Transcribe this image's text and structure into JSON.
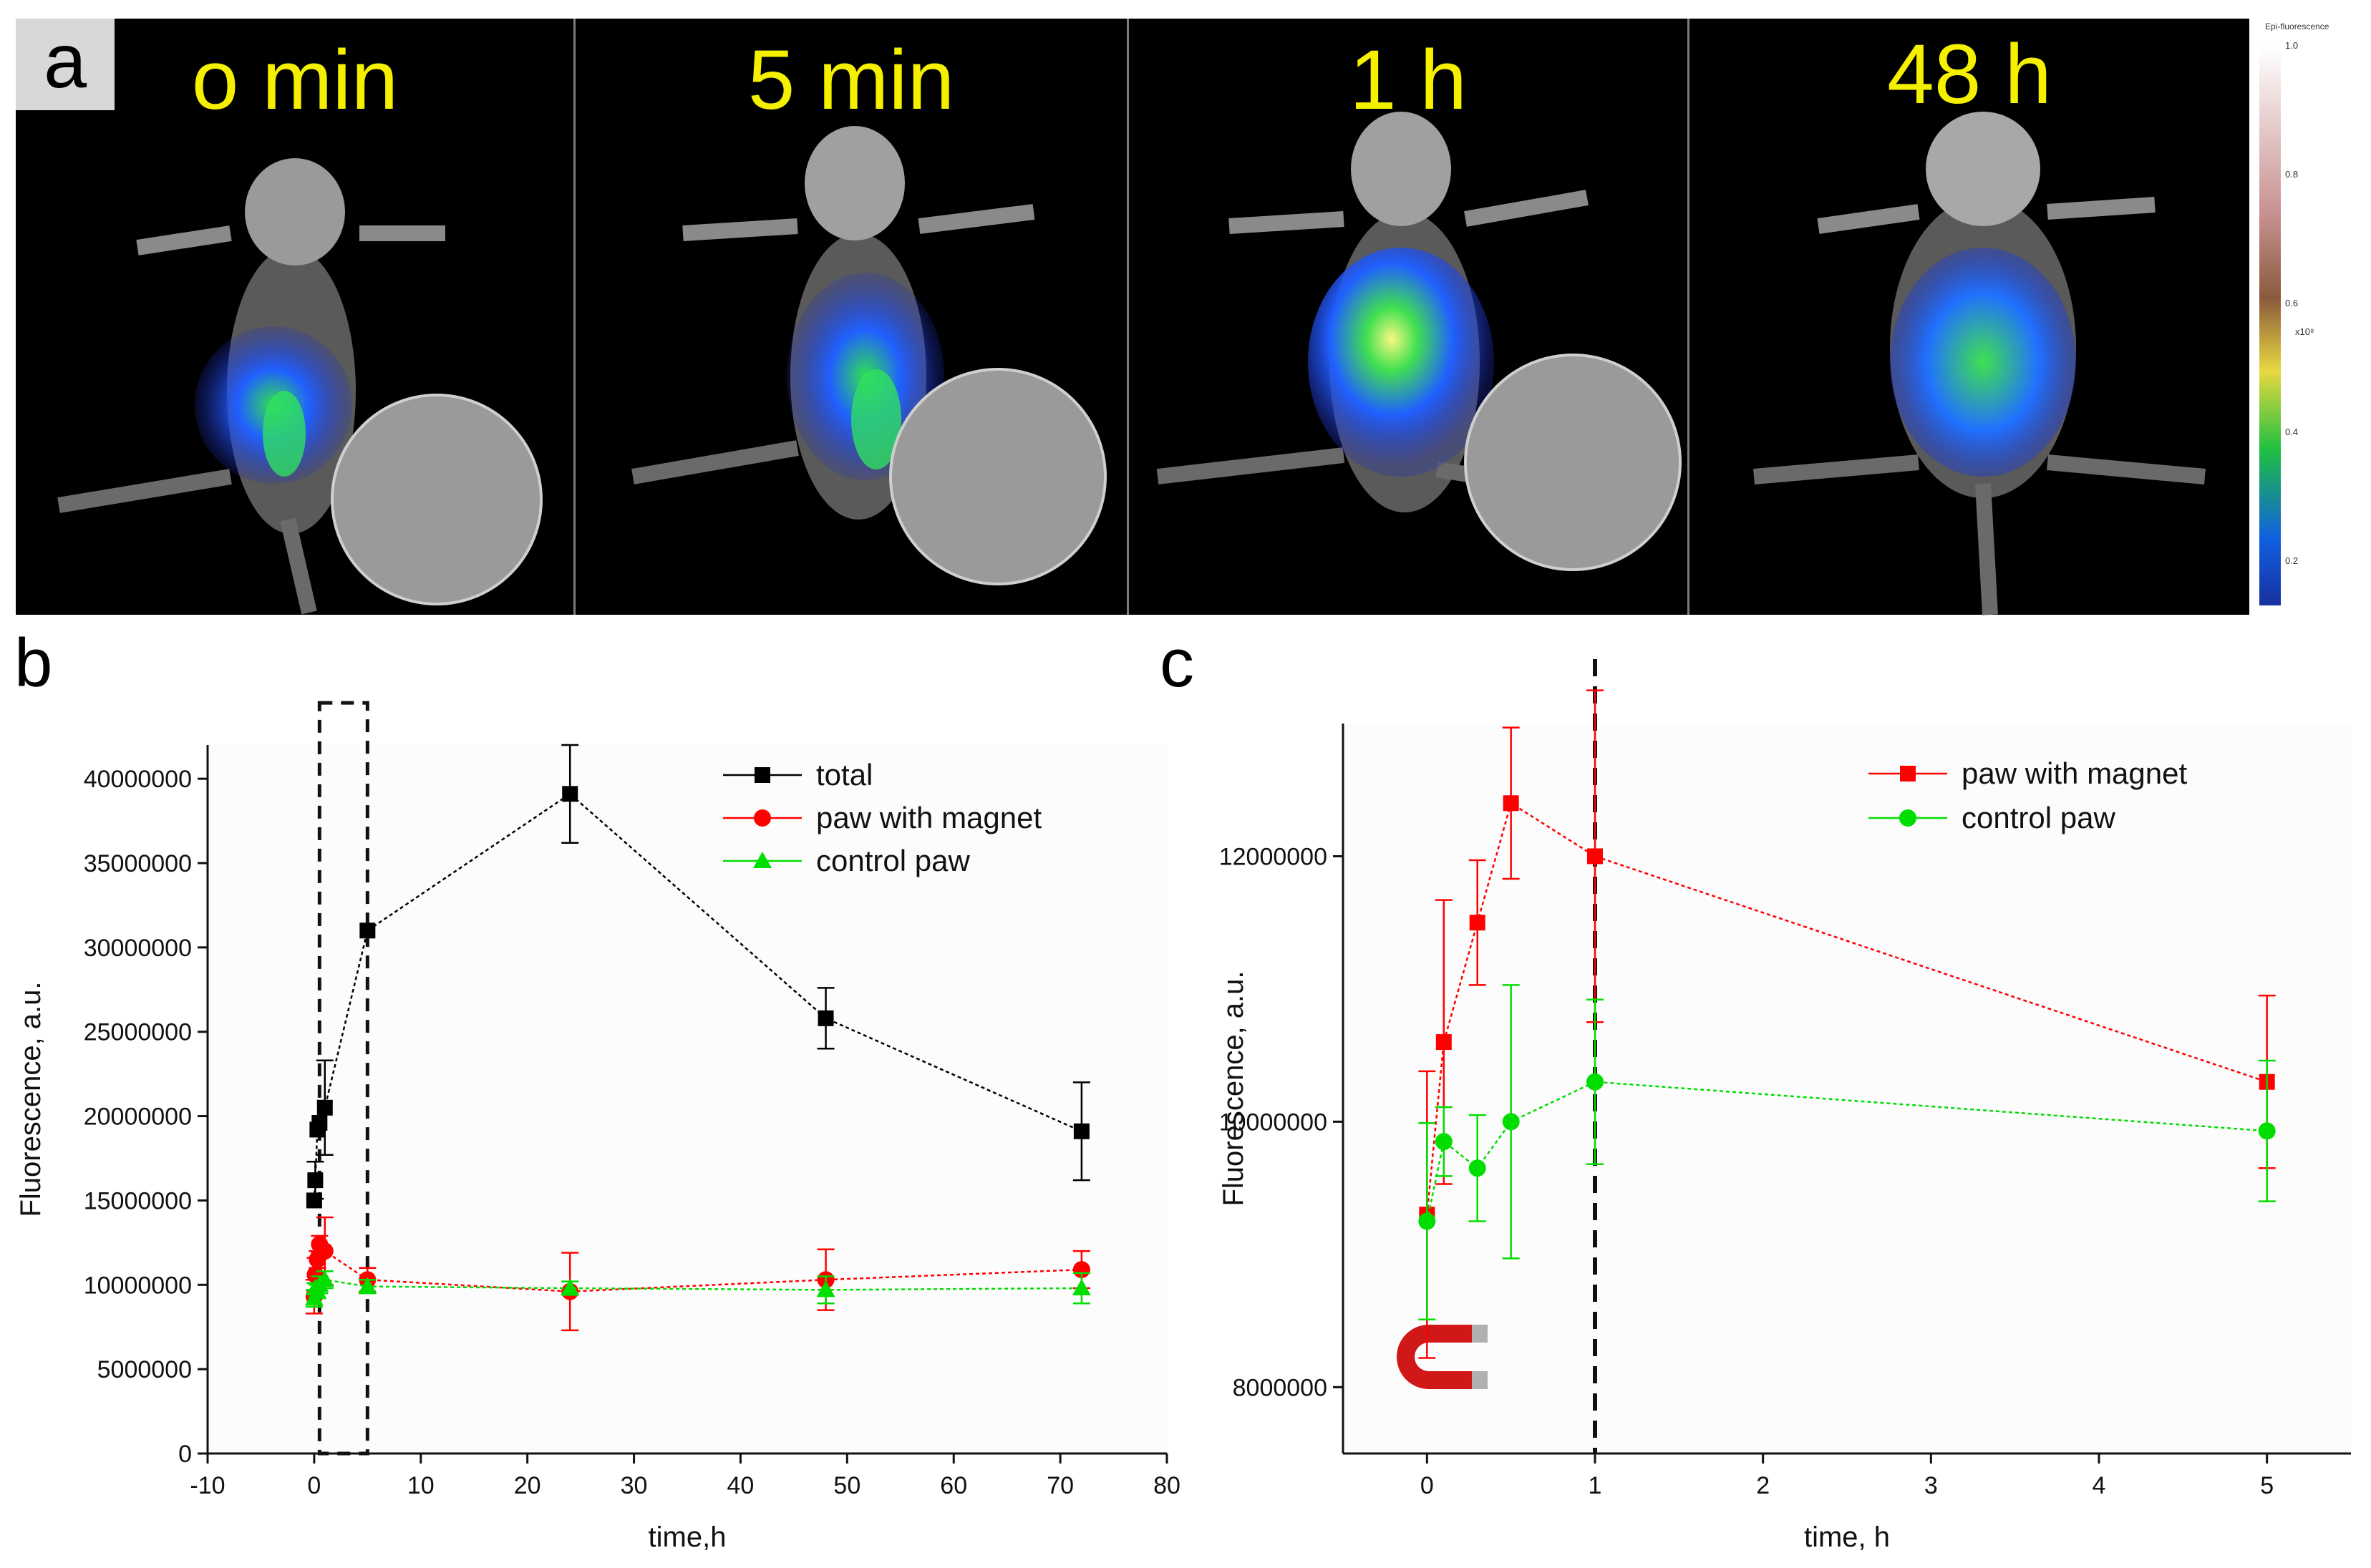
{
  "panel_a": {
    "tag": "a",
    "frames": [
      {
        "label": "o min"
      },
      {
        "label": "5 min"
      },
      {
        "label": "1 h"
      },
      {
        "label": "48 h"
      }
    ],
    "colorbar": {
      "title": "Epi-fluorescence",
      "unit": "x10⁸",
      "ticks": [
        "1.0",
        "0.8",
        "0.6",
        "0.4",
        "0.2"
      ],
      "colors": [
        "#ffffff",
        "#c89090",
        "#8a5a3c",
        "#e8d840",
        "#20c040",
        "#1060e0",
        "#1830a0"
      ]
    },
    "colors": {
      "label": "#f4f000",
      "signal_low": "#2040ff",
      "signal_mid": "#20e040",
      "signal_high": "#f0f060"
    }
  },
  "chart_data": [
    {
      "panel": "b",
      "type": "line",
      "title": "",
      "xlabel": "time,h",
      "ylabel": "Fluorescence, a.u.",
      "xlim": [
        -10,
        80
      ],
      "ylim": [
        0,
        42000000
      ],
      "xticks": [
        -10,
        0,
        10,
        20,
        30,
        40,
        50,
        60,
        70,
        80
      ],
      "yticks": [
        0,
        5000000,
        10000000,
        15000000,
        20000000,
        25000000,
        30000000,
        35000000,
        40000000
      ],
      "legend_position": "top-right",
      "highlight_box": {
        "x_from": 0.5,
        "x_to": 5,
        "y_from": 0,
        "y_to": 44500000
      },
      "series": [
        {
          "name": "total",
          "color": "#000000",
          "marker": "square",
          "x": [
            0,
            0.1,
            0.3,
            0.5,
            1,
            5,
            24,
            48,
            72
          ],
          "y": [
            15000000,
            16200000,
            19200000,
            19600000,
            20500000,
            31000000,
            39100000,
            25800000,
            19100000
          ],
          "err": [
            0,
            1100000,
            0,
            0,
            2800000,
            0,
            2900000,
            1800000,
            2900000
          ]
        },
        {
          "name": "paw with magnet",
          "color": "#ff0000",
          "marker": "circle",
          "x": [
            0,
            0.1,
            0.3,
            0.5,
            1,
            5,
            24,
            48,
            72
          ],
          "y": [
            9300000,
            10600000,
            11500000,
            12400000,
            12000000,
            10300000,
            9600000,
            10300000,
            10900000
          ],
          "err": [
            1000000,
            1000000,
            500000,
            500000,
            2000000,
            700000,
            2300000,
            1800000,
            1100000
          ]
        },
        {
          "name": "control paw",
          "color": "#00dd00",
          "marker": "triangle",
          "x": [
            0,
            0.1,
            0.3,
            0.5,
            1,
            5,
            24,
            48,
            72
          ],
          "y": [
            9200000,
            9800000,
            9600000,
            10000000,
            10300000,
            9900000,
            9800000,
            9700000,
            9800000
          ],
          "err": [
            500000,
            300000,
            400000,
            500000,
            500000,
            400000,
            400000,
            800000,
            900000
          ]
        }
      ]
    },
    {
      "panel": "c",
      "type": "line",
      "title": "",
      "xlabel": "time, h",
      "ylabel": "Fluorescence, a.u.",
      "xlim": [
        -0.5,
        5.5
      ],
      "ylim": [
        7500000,
        13000000
      ],
      "xticks": [
        0,
        1,
        2,
        3,
        4,
        5
      ],
      "yticks": [
        8000000,
        10000000,
        12000000
      ],
      "legend_position": "top-right",
      "vline_x": 1,
      "magnet_icon": true,
      "series": [
        {
          "name": "paw with magnet",
          "color": "#ff0000",
          "marker": "square",
          "x": [
            0,
            0.1,
            0.3,
            0.5,
            1,
            5
          ],
          "y": [
            9300000,
            10600000,
            11500000,
            12400000,
            12000000,
            10300000
          ],
          "err": [
            1080000,
            1070000,
            470000,
            570000,
            1250000,
            650000
          ]
        },
        {
          "name": "control paw",
          "color": "#00dd00",
          "marker": "circle",
          "x": [
            0,
            0.1,
            0.3,
            0.5,
            1,
            5
          ],
          "y": [
            9250000,
            9850000,
            9650000,
            10000000,
            10300000,
            9930000
          ],
          "err": [
            740000,
            260000,
            400000,
            1030000,
            620000,
            530000
          ]
        }
      ]
    }
  ]
}
